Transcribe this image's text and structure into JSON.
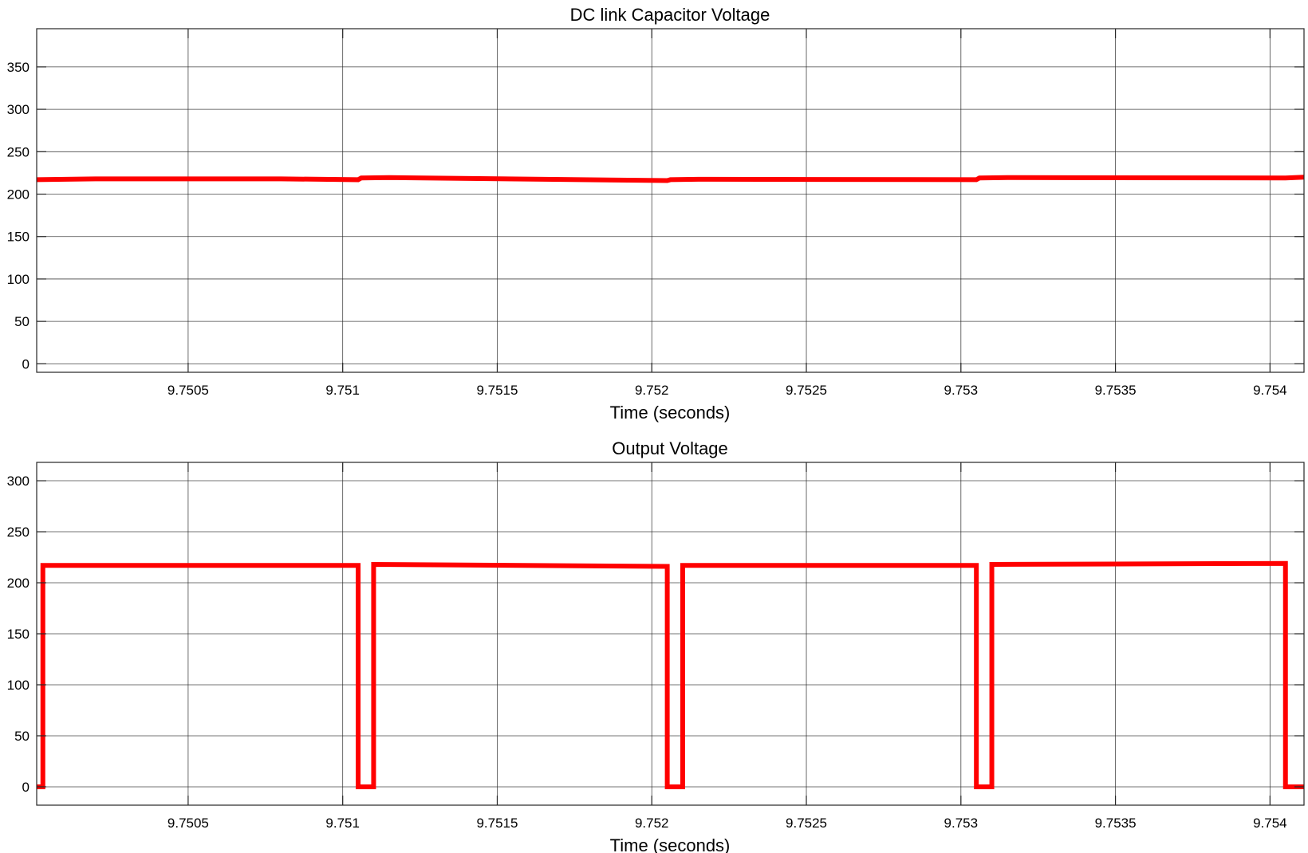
{
  "chart_data": [
    {
      "type": "line",
      "title": "DC link Capacitor Voltage",
      "xlabel": "Time (seconds)",
      "ylabel": "",
      "xlim": [
        9.75001,
        9.75411
      ],
      "ylim": [
        -10,
        395
      ],
      "xticks": [
        9.7505,
        9.751,
        9.7515,
        9.752,
        9.7525,
        9.753,
        9.7535,
        9.754
      ],
      "xtick_labels": [
        "9.7505",
        "9.751",
        "9.7515",
        "9.752",
        "9.7525",
        "9.753",
        "9.7535",
        "9.754"
      ],
      "yticks": [
        0,
        50,
        100,
        150,
        200,
        250,
        300,
        350
      ],
      "ytick_labels": [
        "0",
        "50",
        "100",
        "150",
        "200",
        "250",
        "300",
        "350"
      ],
      "grid": true,
      "legend": "none",
      "series": [
        {
          "color": "#ff0000",
          "x": [
            9.75001,
            9.7502,
            9.7508,
            9.75105,
            9.75106,
            9.75115,
            9.75205,
            9.75206,
            9.75215,
            9.75305,
            9.75306,
            9.75315,
            9.75405,
            9.75411
          ],
          "y": [
            217,
            218,
            218,
            217,
            219,
            219.5,
            216,
            217,
            217.5,
            217,
            219,
            219.5,
            219,
            220
          ]
        }
      ]
    },
    {
      "type": "line",
      "title": "Output Voltage",
      "xlabel": "Time (seconds)",
      "ylabel": "",
      "xlim": [
        9.75001,
        9.75411
      ],
      "ylim": [
        -18,
        318
      ],
      "xticks": [
        9.7505,
        9.751,
        9.7515,
        9.752,
        9.7525,
        9.753,
        9.7535,
        9.754
      ],
      "xtick_labels": [
        "9.7505",
        "9.751",
        "9.7515",
        "9.752",
        "9.7525",
        "9.753",
        "9.7535",
        "9.754"
      ],
      "yticks": [
        0,
        50,
        100,
        150,
        200,
        250,
        300
      ],
      "ytick_labels": [
        "0",
        "50",
        "100",
        "150",
        "200",
        "250",
        "300"
      ],
      "grid": true,
      "legend": "none",
      "series": [
        {
          "color": "#ff0000",
          "x": [
            9.75001,
            9.75003,
            9.75003,
            9.75105,
            9.75105,
            9.7511,
            9.7511,
            9.75205,
            9.75205,
            9.7521,
            9.7521,
            9.75305,
            9.75305,
            9.7531,
            9.7531,
            9.75405,
            9.75405,
            9.75411
          ],
          "y": [
            0,
            0,
            217,
            217,
            0,
            0,
            218,
            216,
            0,
            0,
            217,
            217,
            0,
            0,
            218,
            219,
            0,
            0
          ]
        }
      ]
    }
  ]
}
